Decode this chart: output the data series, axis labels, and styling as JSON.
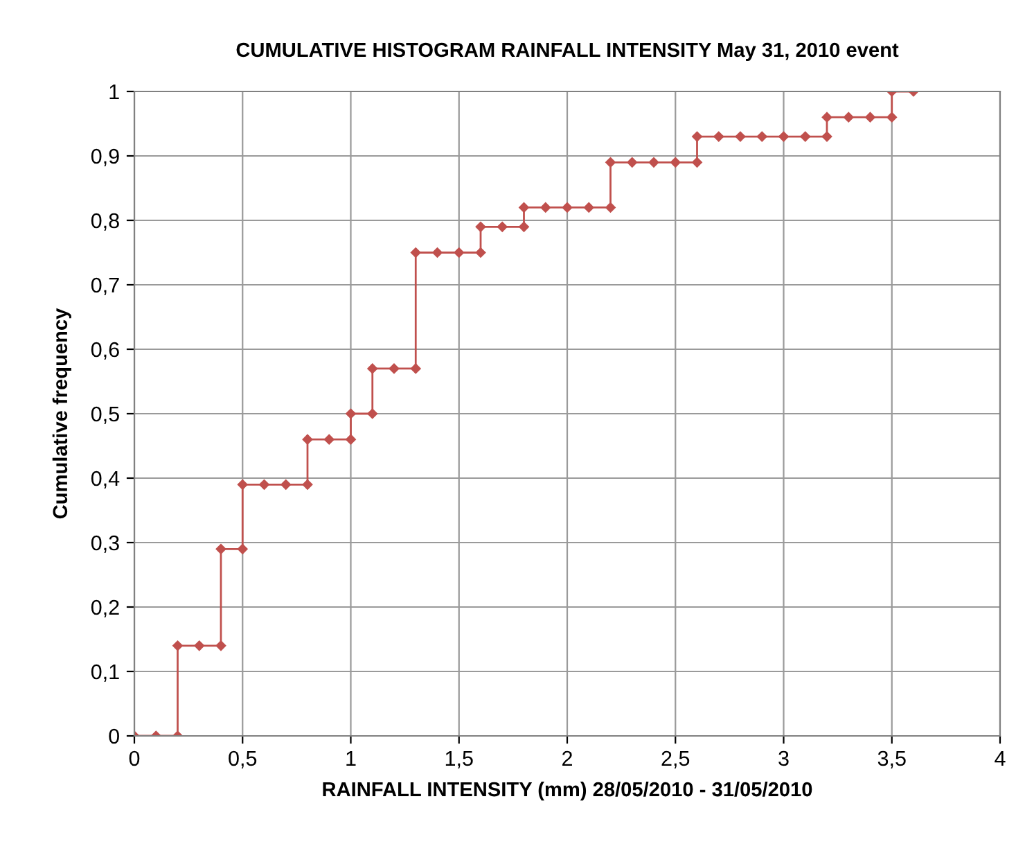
{
  "chart_data": {
    "type": "line",
    "title": "CUMULATIVE HISTOGRAM RAINFALL INTENSITY May 31, 2010 event",
    "xlabel": "RAINFALL INTENSITY (mm) 28/05/2010 - 31/05/2010",
    "ylabel": "Cumulative frequency",
    "series": [
      {
        "color": "#c0504d",
        "x": [
          0,
          0.1,
          0.2,
          0.2,
          0.3,
          0.4,
          0.4,
          0.5,
          0.5,
          0.6,
          0.7,
          0.8,
          0.8,
          0.9,
          1.0,
          1.0,
          1.1,
          1.1,
          1.2,
          1.3,
          1.3,
          1.4,
          1.5,
          1.6,
          1.6,
          1.7,
          1.8,
          1.8,
          1.9,
          2.0,
          2.1,
          2.2,
          2.2,
          2.3,
          2.4,
          2.5,
          2.6,
          2.6,
          2.7,
          2.8,
          2.9,
          3.0,
          3.1,
          3.2,
          3.2,
          3.3,
          3.4,
          3.5,
          3.5,
          3.6
        ],
        "values": [
          0,
          0,
          0,
          0.14,
          0.14,
          0.14,
          0.29,
          0.29,
          0.39,
          0.39,
          0.39,
          0.39,
          0.46,
          0.46,
          0.46,
          0.5,
          0.5,
          0.57,
          0.57,
          0.57,
          0.75,
          0.75,
          0.75,
          0.75,
          0.79,
          0.79,
          0.79,
          0.82,
          0.82,
          0.82,
          0.82,
          0.82,
          0.89,
          0.89,
          0.89,
          0.89,
          0.89,
          0.93,
          0.93,
          0.93,
          0.93,
          0.93,
          0.93,
          0.93,
          0.96,
          0.96,
          0.96,
          0.96,
          1,
          1
        ]
      }
    ],
    "xlim": [
      0,
      4
    ],
    "xticks": [
      0,
      {
        "value": 0.5,
        "label": "0,5"
      },
      1,
      {
        "value": 1.5,
        "label": "1,5"
      },
      2,
      {
        "value": 2.5,
        "label": "2,5"
      },
      3,
      {
        "value": 3.5,
        "label": "3,5"
      },
      4
    ],
    "ylim": [
      0,
      1
    ],
    "yticks": [
      0,
      {
        "value": 0.1,
        "label": "0,1"
      },
      {
        "value": 0.2,
        "label": "0,2"
      },
      {
        "value": 0.3,
        "label": "0,3"
      },
      {
        "value": 0.4,
        "label": "0,4"
      },
      {
        "value": 0.5,
        "label": "0,5"
      },
      {
        "value": 0.6,
        "label": "0,6"
      },
      {
        "value": 0.7,
        "label": "0,7"
      },
      {
        "value": 0.8,
        "label": "0,8"
      },
      {
        "value": 0.9,
        "label": "0,9"
      },
      1
    ],
    "grid": true,
    "marker": "diamond",
    "line_style": "solid"
  }
}
